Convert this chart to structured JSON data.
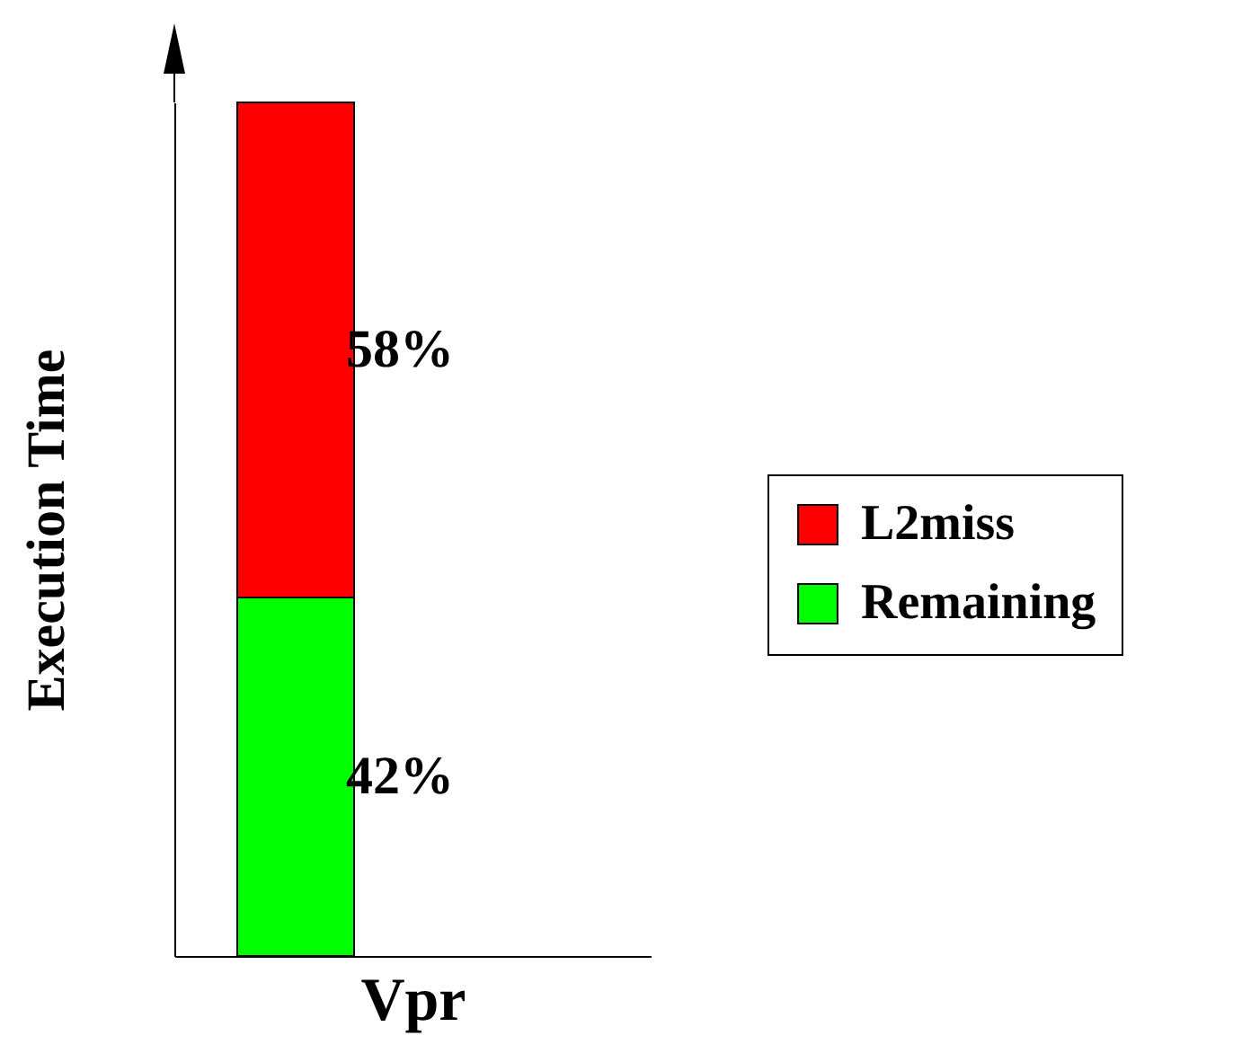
{
  "chart_data": {
    "type": "bar",
    "ylabel": "Execution Time",
    "categories": [
      "Vpr"
    ],
    "stacked": true,
    "legend": "right",
    "series": [
      {
        "name": "Remaining",
        "color": "#00ff00",
        "values": [
          42
        ],
        "value_labels": [
          "42%"
        ]
      },
      {
        "name": "L2miss",
        "color": "#ff0000",
        "values": [
          58
        ],
        "value_labels": [
          "58%"
        ]
      }
    ]
  }
}
